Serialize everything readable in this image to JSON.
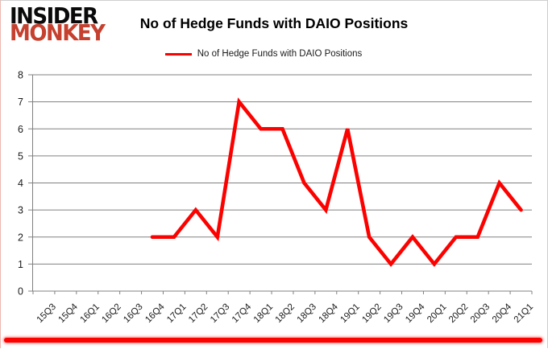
{
  "logo": {
    "line1": "INSIDER",
    "line2": "MONKEY"
  },
  "header": {
    "title": "No of Hedge Funds with DAIO Positions"
  },
  "legend": {
    "label": "No of Hedge Funds with DAIO Positions"
  },
  "colors": {
    "series_red": "#fb0200",
    "logo_red": "#c5402e",
    "gridline": "#808080",
    "text": "#1a1a1a",
    "bottom_glow": "#fb0200"
  },
  "chart_data": {
    "type": "line",
    "title": "No of Hedge Funds with DAIO Positions",
    "categories": [
      "15Q3",
      "15Q4",
      "16Q1",
      "16Q2",
      "16Q3",
      "16Q4",
      "17Q1",
      "17Q2",
      "17Q3",
      "17Q4",
      "18Q1",
      "18Q2",
      "18Q3",
      "18Q4",
      "19Q1",
      "19Q2",
      "19Q3",
      "19Q4",
      "20Q1",
      "20Q2",
      "20Q3",
      "20Q4",
      "21Q1"
    ],
    "series": [
      {
        "name": "No of Hedge Funds with DAIO Positions",
        "color": "#fb0200",
        "values": [
          null,
          null,
          null,
          null,
          null,
          2,
          2,
          3,
          2,
          7,
          6,
          6,
          4,
          3,
          6,
          2,
          1,
          2,
          1,
          2,
          2,
          4,
          3
        ]
      }
    ],
    "xlabel": "",
    "ylabel": "",
    "ylim": [
      0,
      8
    ],
    "yticks": [
      0,
      1,
      2,
      3,
      4,
      5,
      6,
      7,
      8
    ],
    "grid": true,
    "gridline_color": "#808080",
    "legend_position": "top"
  }
}
